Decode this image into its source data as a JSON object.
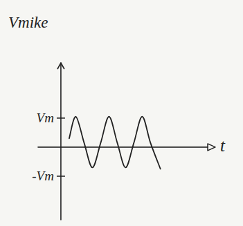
{
  "chart_data": {
    "type": "line",
    "y_label": "Vmike",
    "x_label": "t",
    "x": [
      1.0,
      1.8,
      2.8,
      3.8,
      4.8,
      5.8,
      6.8,
      7.8,
      8.8,
      9.8,
      10.8,
      12.0
    ],
    "values": [
      0.3,
      1.05,
      0.15,
      -0.7,
      0.15,
      1.05,
      0.15,
      -0.7,
      0.15,
      1.05,
      0.15,
      -0.75
    ],
    "color": "#222222",
    "xlim": [
      -2.75,
      17.7
    ],
    "ylim": [
      -2.5,
      2.9
    ],
    "yticks": [
      {
        "value": 1,
        "label": "Vm"
      },
      {
        "value": -1,
        "label": "-Vm"
      }
    ],
    "tick_labels": "y",
    "grid": false
  }
}
